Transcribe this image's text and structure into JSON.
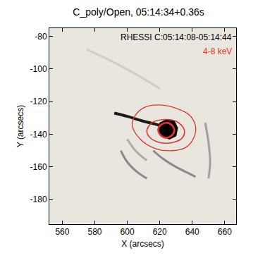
{
  "chart_data": {
    "type": "image",
    "title": "C_poly/Open, 05:14:34+0.36s",
    "x_label": "X (arcsecs)",
    "y_label": "Y (arcsecs)",
    "color": "#e9e6df",
    "xlim": [
      552,
      667
    ],
    "ylim": [
      -195,
      -75
    ],
    "xticks": [
      560,
      580,
      600,
      620,
      640,
      660
    ],
    "yticks": [
      -80,
      -100,
      -120,
      -140,
      -160,
      -180
    ],
    "grid": false,
    "annotations": [
      {
        "text": "RHESSI C:05:14:08-05:14:44",
        "color": "#000000"
      },
      {
        "text": "4-8 keV",
        "color": "#e8332a"
      }
    ],
    "series": [
      {
        "type": "line",
        "color": "#d2cdc3",
        "x": [
          575,
          590,
          605,
          620
        ],
        "y": [
          -88,
          -95,
          -103,
          -112
        ]
      },
      {
        "type": "line",
        "color": "#b0aca4",
        "x": [
          600,
          605,
          612
        ],
        "y": [
          -143,
          -150,
          -156
        ]
      },
      {
        "type": "line",
        "color": "#8a8a8a",
        "x": [
          596,
          600,
          606,
          612
        ],
        "y": [
          -150,
          -157,
          -163,
          -167
        ]
      },
      {
        "type": "line",
        "color": "#8a8a8a",
        "x": [
          616,
          622,
          630,
          638,
          642
        ],
        "y": [
          -150,
          -155,
          -160,
          -164,
          -166
        ]
      },
      {
        "type": "line",
        "color": "#a0a0a0",
        "x": [
          648,
          650,
          651,
          650
        ],
        "y": [
          -133,
          -145,
          -157,
          -167
        ]
      },
      {
        "type": "line",
        "color": "#1a1a1a",
        "x": [
          592,
          600,
          610,
          618,
          624
        ],
        "y": [
          -127,
          -129,
          -132,
          -134,
          -136
        ]
      },
      {
        "type": "fill",
        "color": "#000000",
        "x": [
          620,
          624,
          629,
          631,
          630,
          626,
          621,
          619,
          620
        ],
        "y": [
          -133,
          -131,
          -132,
          -136,
          -141,
          -143,
          -141,
          -137,
          -133
        ]
      },
      {
        "type": "contour",
        "color": "#e8332a",
        "x": [
          603,
          606,
          612,
          620,
          630,
          638,
          642,
          641,
          636,
          628,
          618,
          608,
          603
        ],
        "y": [
          -134,
          -127,
          -123,
          -122,
          -124,
          -128,
          -135,
          -142,
          -148,
          -150,
          -149,
          -143,
          -134
        ]
      },
      {
        "type": "contour",
        "color": "#e8332a",
        "x": [
          612,
          615,
          622,
          630,
          635,
          634,
          628,
          620,
          614,
          612
        ],
        "y": [
          -138,
          -133,
          -131,
          -132,
          -137,
          -142,
          -145,
          -145,
          -142,
          -138
        ]
      },
      {
        "type": "contour",
        "color": "#e8332a",
        "x": [
          619,
          621,
          625,
          628,
          629,
          627,
          623,
          620,
          619
        ],
        "y": [
          -137,
          -134,
          -133,
          -135,
          -138,
          -141,
          -142,
          -140,
          -137
        ]
      }
    ]
  }
}
